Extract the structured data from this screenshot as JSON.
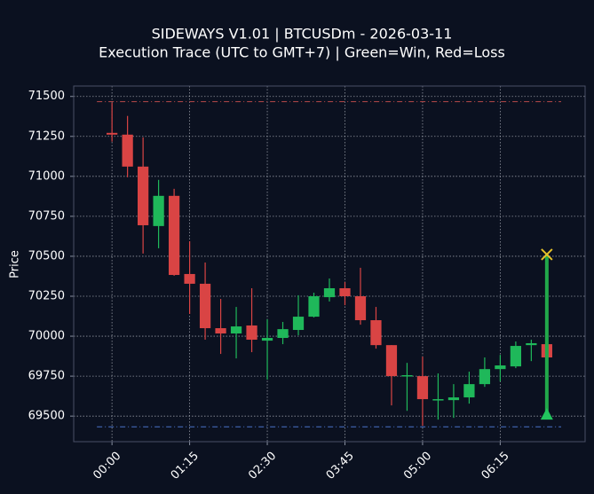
{
  "chart_data": {
    "type": "candlestick",
    "title": "SIDEWAYS V1.01 | BTCUSDm - 2026-03-11",
    "subtitle": "Execution Trace (UTC to GMT+7) | Green=Win, Red=Loss",
    "y_label": "Price",
    "x": [
      0,
      15,
      30,
      45,
      60,
      75,
      90,
      105,
      120,
      135,
      150,
      165,
      180,
      195,
      210,
      225,
      240,
      255,
      270,
      285,
      300,
      315,
      330,
      345,
      360,
      375,
      390,
      405,
      420
    ],
    "open": [
      71272,
      71261,
      71061,
      70689,
      70878,
      70389,
      70328,
      70050,
      70017,
      70067,
      69972,
      69989,
      70039,
      70122,
      70244,
      70300,
      70250,
      70100,
      69944,
      69750,
      69750,
      69600,
      69600,
      69617,
      69700,
      69794,
      69811,
      69944,
      69950
    ],
    "high": [
      71461,
      71378,
      71244,
      70978,
      70922,
      70594,
      70461,
      70233,
      70183,
      70300,
      70106,
      70089,
      70256,
      70272,
      70361,
      70339,
      70428,
      70183,
      69944,
      69833,
      69872,
      69767,
      69700,
      69778,
      69867,
      69883,
      69967,
      69978,
      69950
    ],
    "low": [
      71217,
      70994,
      70517,
      70550,
      70378,
      70139,
      69978,
      69889,
      69861,
      69900,
      69728,
      69950,
      70006,
      70117,
      70217,
      70194,
      70072,
      69922,
      69567,
      69533,
      69439,
      69478,
      69489,
      69578,
      69683,
      69717,
      69800,
      69844,
      69861
    ],
    "close": [
      71261,
      71061,
      70694,
      70878,
      70383,
      70328,
      70050,
      70017,
      70061,
      69978,
      69989,
      70044,
      70122,
      70250,
      70300,
      70250,
      70100,
      69944,
      69750,
      69756,
      69606,
      69606,
      69617,
      69700,
      69794,
      69817,
      69939,
      69956,
      69867
    ],
    "up_color": "#1fb85a",
    "down_color": "#d94444",
    "levels": [
      {
        "value": 71467,
        "color": "#b84a4a"
      },
      {
        "value": 69433,
        "color": "#4a72c8"
      }
    ],
    "trade": {
      "x": 420,
      "entry": 69511,
      "exit": 70511,
      "color": "#22a84a",
      "entry_color": "#22c55e",
      "exit_color": "#e6c229"
    },
    "xlim": [
      -37,
      457
    ],
    "ylim": [
      69340,
      71565
    ],
    "xticks": [
      {
        "value": 0,
        "label": "00:00"
      },
      {
        "value": 75,
        "label": "01:15"
      },
      {
        "value": 150,
        "label": "02:30"
      },
      {
        "value": 225,
        "label": "03:45"
      },
      {
        "value": 300,
        "label": "05:00"
      },
      {
        "value": 375,
        "label": "06:15"
      }
    ],
    "yticks": [
      69500,
      69750,
      70000,
      70250,
      70500,
      70750,
      71000,
      71250,
      71500
    ],
    "grid": true
  }
}
